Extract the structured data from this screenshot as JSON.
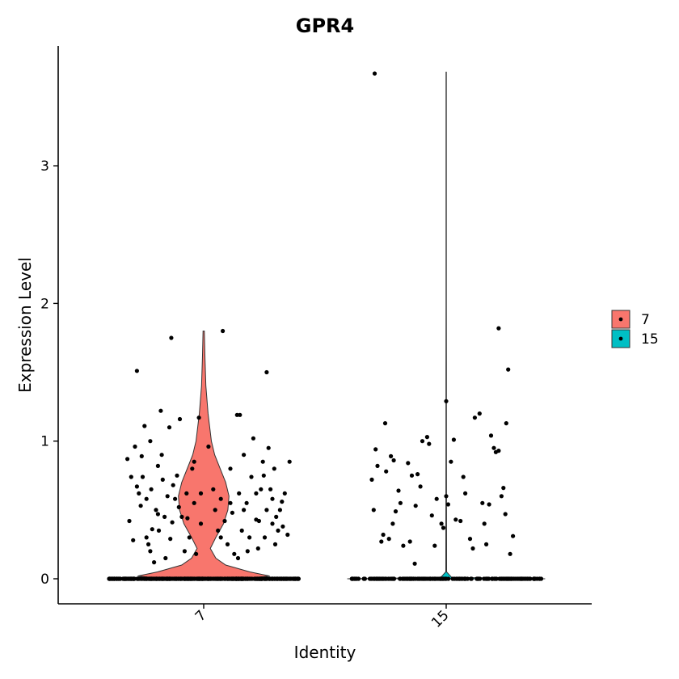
{
  "chart_data": {
    "type": "violin",
    "title": "GPR4",
    "xlabel": "Identity",
    "ylabel": "Expression Level",
    "categories": [
      "7",
      "15"
    ],
    "ylim": [
      -0.18,
      3.86
    ],
    "yticks": [
      0,
      1,
      2,
      3
    ],
    "grid": false,
    "legend": {
      "position": "right",
      "entries": [
        {
          "label": "7",
          "color": "#F8766D"
        },
        {
          "label": "15",
          "color": "#00BFC4"
        }
      ]
    },
    "x_tick_rotation": -45,
    "series": [
      {
        "name": "7",
        "color": "#F8766D",
        "max": 1.8,
        "violin_profile": [
          [
            0.0,
            0.36
          ],
          [
            0.02,
            0.6
          ],
          [
            0.05,
            0.42
          ],
          [
            0.1,
            0.2
          ],
          [
            0.15,
            0.11
          ],
          [
            0.22,
            0.06
          ],
          [
            0.3,
            0.11
          ],
          [
            0.4,
            0.18
          ],
          [
            0.5,
            0.22
          ],
          [
            0.6,
            0.23
          ],
          [
            0.7,
            0.2
          ],
          [
            0.8,
            0.15
          ],
          [
            0.9,
            0.1
          ],
          [
            1.0,
            0.07
          ],
          [
            1.2,
            0.04
          ],
          [
            1.4,
            0.02
          ],
          [
            1.6,
            0.012
          ],
          [
            1.8,
            0.006
          ]
        ],
        "zero_count": 420,
        "nonzero_points": [
          [
            -0.8,
            0.87
          ],
          [
            -0.78,
            0.42
          ],
          [
            -0.76,
            0.74
          ],
          [
            -0.72,
            0.96
          ],
          [
            -0.7,
            1.51
          ],
          [
            -0.68,
            0.62
          ],
          [
            -0.66,
            0.53
          ],
          [
            -0.65,
            0.89
          ],
          [
            -0.62,
            1.11
          ],
          [
            -0.6,
            0.58
          ],
          [
            -0.58,
            0.25
          ],
          [
            -0.56,
            0.2
          ],
          [
            -0.55,
            0.65
          ],
          [
            -0.52,
            0.12
          ],
          [
            -0.5,
            0.5
          ],
          [
            -0.48,
            0.82
          ],
          [
            -0.47,
            0.35
          ],
          [
            -0.45,
            1.22
          ],
          [
            -0.43,
            0.72
          ],
          [
            -0.41,
            0.45
          ],
          [
            -0.4,
            0.15
          ],
          [
            -0.38,
            0.6
          ],
          [
            -0.36,
            1.1
          ],
          [
            -0.35,
            0.29
          ],
          [
            -0.33,
            0.41
          ],
          [
            -0.3,
            0.58
          ],
          [
            -0.28,
            0.75
          ],
          [
            -0.25,
            1.16
          ],
          [
            -0.23,
            0.45
          ],
          [
            -0.2,
            0.2
          ],
          [
            -0.18,
            0.62
          ],
          [
            -0.15,
            0.3
          ],
          [
            -0.12,
            0.8
          ],
          [
            -0.1,
            0.55
          ],
          [
            -0.08,
            0.18
          ],
          [
            -0.05,
            1.17
          ],
          [
            -0.03,
            0.4
          ],
          [
            -0.6,
            0.3
          ],
          [
            -0.74,
            0.28
          ],
          [
            -0.7,
            0.67
          ],
          [
            -0.54,
            0.36
          ],
          [
            -0.44,
            0.9
          ],
          [
            -0.32,
            0.68
          ],
          [
            -0.26,
            0.52
          ],
          [
            -0.17,
            0.44
          ],
          [
            -0.1,
            0.85
          ],
          [
            -0.34,
            1.75
          ],
          [
            -0.03,
            0.62
          ],
          [
            -0.48,
            0.47
          ],
          [
            -0.64,
            0.74
          ],
          [
            -0.56,
            1.0
          ],
          [
            0.05,
            0.96
          ],
          [
            0.1,
            0.65
          ],
          [
            0.12,
            0.5
          ],
          [
            0.15,
            0.35
          ],
          [
            0.18,
            0.58
          ],
          [
            0.2,
            1.8
          ],
          [
            0.22,
            0.42
          ],
          [
            0.25,
            0.25
          ],
          [
            0.28,
            0.8
          ],
          [
            0.3,
            0.48
          ],
          [
            0.32,
            0.18
          ],
          [
            0.35,
            1.19
          ],
          [
            0.37,
            0.62
          ],
          [
            0.4,
            0.35
          ],
          [
            0.42,
            0.9
          ],
          [
            0.45,
            0.55
          ],
          [
            0.48,
            0.3
          ],
          [
            0.5,
            0.74
          ],
          [
            0.52,
            1.02
          ],
          [
            0.55,
            0.43
          ],
          [
            0.57,
            0.22
          ],
          [
            0.6,
            0.65
          ],
          [
            0.62,
            0.85
          ],
          [
            0.64,
            0.3
          ],
          [
            0.66,
            0.5
          ],
          [
            0.68,
            0.95
          ],
          [
            0.7,
            0.65
          ],
          [
            0.72,
            0.4
          ],
          [
            0.74,
            0.8
          ],
          [
            0.75,
            0.25
          ],
          [
            0.76,
            0.45
          ],
          [
            0.78,
            0.35
          ],
          [
            0.8,
            0.5
          ],
          [
            0.82,
            0.56
          ],
          [
            0.83,
            0.38
          ],
          [
            0.85,
            0.62
          ],
          [
            0.88,
            0.32
          ],
          [
            0.9,
            0.85
          ],
          [
            0.66,
            1.5
          ],
          [
            0.42,
            0.5
          ],
          [
            0.36,
            0.15
          ],
          [
            0.18,
            0.3
          ],
          [
            0.28,
            0.55
          ],
          [
            0.55,
            0.62
          ],
          [
            0.63,
            0.75
          ],
          [
            0.46,
            0.2
          ],
          [
            0.38,
            1.19
          ],
          [
            0.58,
            0.42
          ],
          [
            0.72,
            0.58
          ]
        ]
      },
      {
        "name": "15",
        "color": "#00BFC4",
        "max": 3.68,
        "violin_profile": [
          [
            0.0,
            0.9
          ],
          [
            0.01,
            0.05
          ],
          [
            0.05,
            0.004
          ],
          [
            0.5,
            0.003
          ],
          [
            1.0,
            0.002
          ],
          [
            1.5,
            0.002
          ],
          [
            2.0,
            0.0015
          ],
          [
            2.5,
            0.0012
          ],
          [
            3.0,
            0.0012
          ],
          [
            3.68,
            0.0012
          ]
        ],
        "zero_count": 180,
        "nonzero_points": [
          [
            -0.78,
            0.72
          ],
          [
            -0.76,
            0.5
          ],
          [
            -0.74,
            0.94
          ],
          [
            -0.72,
            0.82
          ],
          [
            -0.68,
            0.27
          ],
          [
            -0.66,
            0.32
          ],
          [
            -0.64,
            1.13
          ],
          [
            -0.63,
            0.78
          ],
          [
            -0.6,
            0.29
          ],
          [
            -0.58,
            0.89
          ],
          [
            -0.56,
            0.4
          ],
          [
            -0.55,
            0.86
          ],
          [
            -0.53,
            0.49
          ],
          [
            -0.5,
            0.64
          ],
          [
            -0.48,
            0.55
          ],
          [
            -0.45,
            0.24
          ],
          [
            -0.4,
            0.84
          ],
          [
            -0.38,
            0.27
          ],
          [
            -0.36,
            0.75
          ],
          [
            -0.33,
            0.11
          ],
          [
            -0.32,
            0.53
          ],
          [
            -0.3,
            0.76
          ],
          [
            -0.27,
            0.67
          ],
          [
            -0.25,
            1.0
          ],
          [
            -0.2,
            1.03
          ],
          [
            -0.18,
            0.98
          ],
          [
            -0.15,
            0.46
          ],
          [
            -0.12,
            0.24
          ],
          [
            -0.1,
            0.58
          ],
          [
            -0.05,
            0.4
          ],
          [
            -0.03,
            0.37
          ],
          [
            0.0,
            0.6
          ],
          [
            0.02,
            0.54
          ],
          [
            0.05,
            0.85
          ],
          [
            0.08,
            1.01
          ],
          [
            0.1,
            0.43
          ],
          [
            0.15,
            0.42
          ],
          [
            0.18,
            0.74
          ],
          [
            0.2,
            0.62
          ],
          [
            0.25,
            0.29
          ],
          [
            0.28,
            0.22
          ],
          [
            0.3,
            1.17
          ],
          [
            0.35,
            1.2
          ],
          [
            0.38,
            0.55
          ],
          [
            0.42,
            0.25
          ],
          [
            0.45,
            0.54
          ],
          [
            0.47,
            1.04
          ],
          [
            0.5,
            0.95
          ],
          [
            0.52,
            0.92
          ],
          [
            0.55,
            0.93
          ],
          [
            0.58,
            0.6
          ],
          [
            0.6,
            0.66
          ],
          [
            0.62,
            0.47
          ],
          [
            0.63,
            1.13
          ],
          [
            0.65,
            1.52
          ],
          [
            0.67,
            0.18
          ],
          [
            0.7,
            0.31
          ],
          [
            0.55,
            1.82
          ],
          [
            0.4,
            0.4
          ],
          [
            -0.7,
            0.0
          ],
          [
            -0.75,
            3.67
          ],
          [
            0.0,
            1.29
          ]
        ]
      }
    ]
  }
}
